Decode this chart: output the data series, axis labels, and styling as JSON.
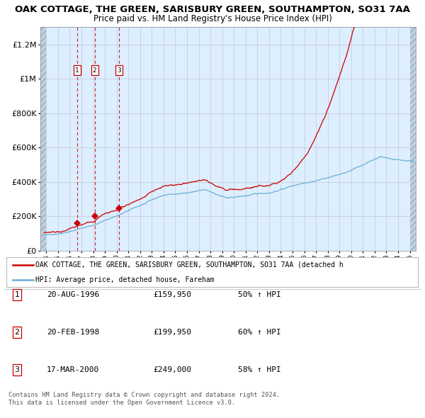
{
  "title_line1": "OAK COTTAGE, THE GREEN, SARISBURY GREEN, SOUTHAMPTON, SO31 7AA",
  "title_line2": "Price paid vs. HM Land Registry's House Price Index (HPI)",
  "title_fontsize": 9.5,
  "subtitle_fontsize": 8.5,
  "purchases": [
    {
      "date_num": 1996.64,
      "price": 159950,
      "label": "1"
    },
    {
      "date_num": 1998.13,
      "price": 199950,
      "label": "2"
    },
    {
      "date_num": 2000.21,
      "price": 249000,
      "label": "3"
    }
  ],
  "table_rows": [
    {
      "num": "1",
      "date": "20-AUG-1996",
      "price": "£159,950",
      "hpi": "50% ↑ HPI"
    },
    {
      "num": "2",
      "date": "20-FEB-1998",
      "price": "£199,950",
      "hpi": "60% ↑ HPI"
    },
    {
      "num": "3",
      "date": "17-MAR-2000",
      "price": "£249,000",
      "hpi": "58% ↑ HPI"
    }
  ],
  "legend_line1": "OAK COTTAGE, THE GREEN, SARISBURY GREEN, SOUTHAMPTON, SO31 7AA (detached h",
  "legend_line2": "HPI: Average price, detached house, Fareham",
  "hpi_color": "#6baed6",
  "property_color": "#cc0000",
  "dashed_color": "#cc0000",
  "background_plot": "#ddeeff",
  "footer_text": "Contains HM Land Registry data © Crown copyright and database right 2024.\nThis data is licensed under the Open Government Licence v3.0.",
  "ylim": [
    0,
    1300000
  ],
  "xlim_start": 1993.5,
  "xlim_end": 2025.5,
  "yticks": [
    0,
    200000,
    400000,
    600000,
    800000,
    1000000,
    1200000
  ],
  "ytick_labels": [
    "£0",
    "£200K",
    "£400K",
    "£600K",
    "£800K",
    "£1M",
    "£1.2M"
  ]
}
